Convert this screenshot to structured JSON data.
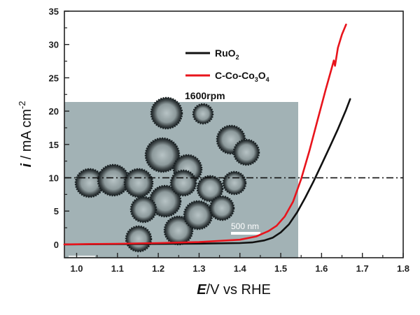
{
  "chart_data": {
    "type": "line",
    "title": "",
    "xlabel": "E/V vs RHE",
    "xlabel_italic_part": "E",
    "xlabel_rest": "/V vs RHE",
    "ylabel": "i / mA cm-2",
    "ylabel_italic_part": "i",
    "ylabel_rest": " / mA cm",
    "ylabel_sup": "-2",
    "xlim": [
      0.97,
      1.8
    ],
    "ylim": [
      -2,
      35
    ],
    "xticks": [
      1.0,
      1.1,
      1.2,
      1.3,
      1.4,
      1.5,
      1.6,
      1.7,
      1.8
    ],
    "xtick_labels": [
      "1.0",
      "1.1",
      "1.2",
      "1.3",
      "1.4",
      "1.5",
      "1.6",
      "1.7",
      "1.8"
    ],
    "yticks": [
      0,
      5,
      10,
      15,
      20,
      25,
      30,
      35
    ],
    "ytick_labels": [
      "0",
      "5",
      "10",
      "15",
      "20",
      "25",
      "30",
      "35"
    ],
    "grid": false,
    "legend_position": "upper-center",
    "series": [
      {
        "name": "RuO2",
        "name_main": "RuO",
        "name_sub": "2",
        "color": "#111111",
        "x": [
          0.97,
          1.1,
          1.2,
          1.3,
          1.4,
          1.43,
          1.46,
          1.48,
          1.5,
          1.52,
          1.54,
          1.56,
          1.58,
          1.6,
          1.62,
          1.64,
          1.66,
          1.67
        ],
        "y": [
          0.0,
          0.05,
          0.08,
          0.12,
          0.2,
          0.3,
          0.6,
          1.0,
          1.8,
          3.0,
          4.8,
          7.0,
          9.4,
          12.0,
          14.6,
          17.3,
          20.2,
          21.8
        ]
      },
      {
        "name": "C-Co-Co3O4",
        "name_parts": [
          "C-Co-Co",
          "3",
          "O",
          "4"
        ],
        "color": "#e8141c",
        "x": [
          0.97,
          1.1,
          1.2,
          1.3,
          1.4,
          1.44,
          1.47,
          1.49,
          1.51,
          1.53,
          1.55,
          1.57,
          1.59,
          1.61,
          1.625,
          1.63,
          1.633,
          1.64,
          1.65,
          1.66
        ],
        "y": [
          0.0,
          0.1,
          0.2,
          0.35,
          0.7,
          1.2,
          2.0,
          2.8,
          4.2,
          6.4,
          9.8,
          14.0,
          18.6,
          23.2,
          26.5,
          27.6,
          26.8,
          29.5,
          31.5,
          33.0
        ]
      }
    ],
    "reference_line": {
      "y": 10,
      "style": "dash-dot",
      "color": "#111111"
    },
    "annotations": [
      "1600rpm"
    ],
    "inset": {
      "type": "micrograph",
      "scale_bar_label": "500 nm",
      "tint": "#9fb0b3"
    }
  }
}
